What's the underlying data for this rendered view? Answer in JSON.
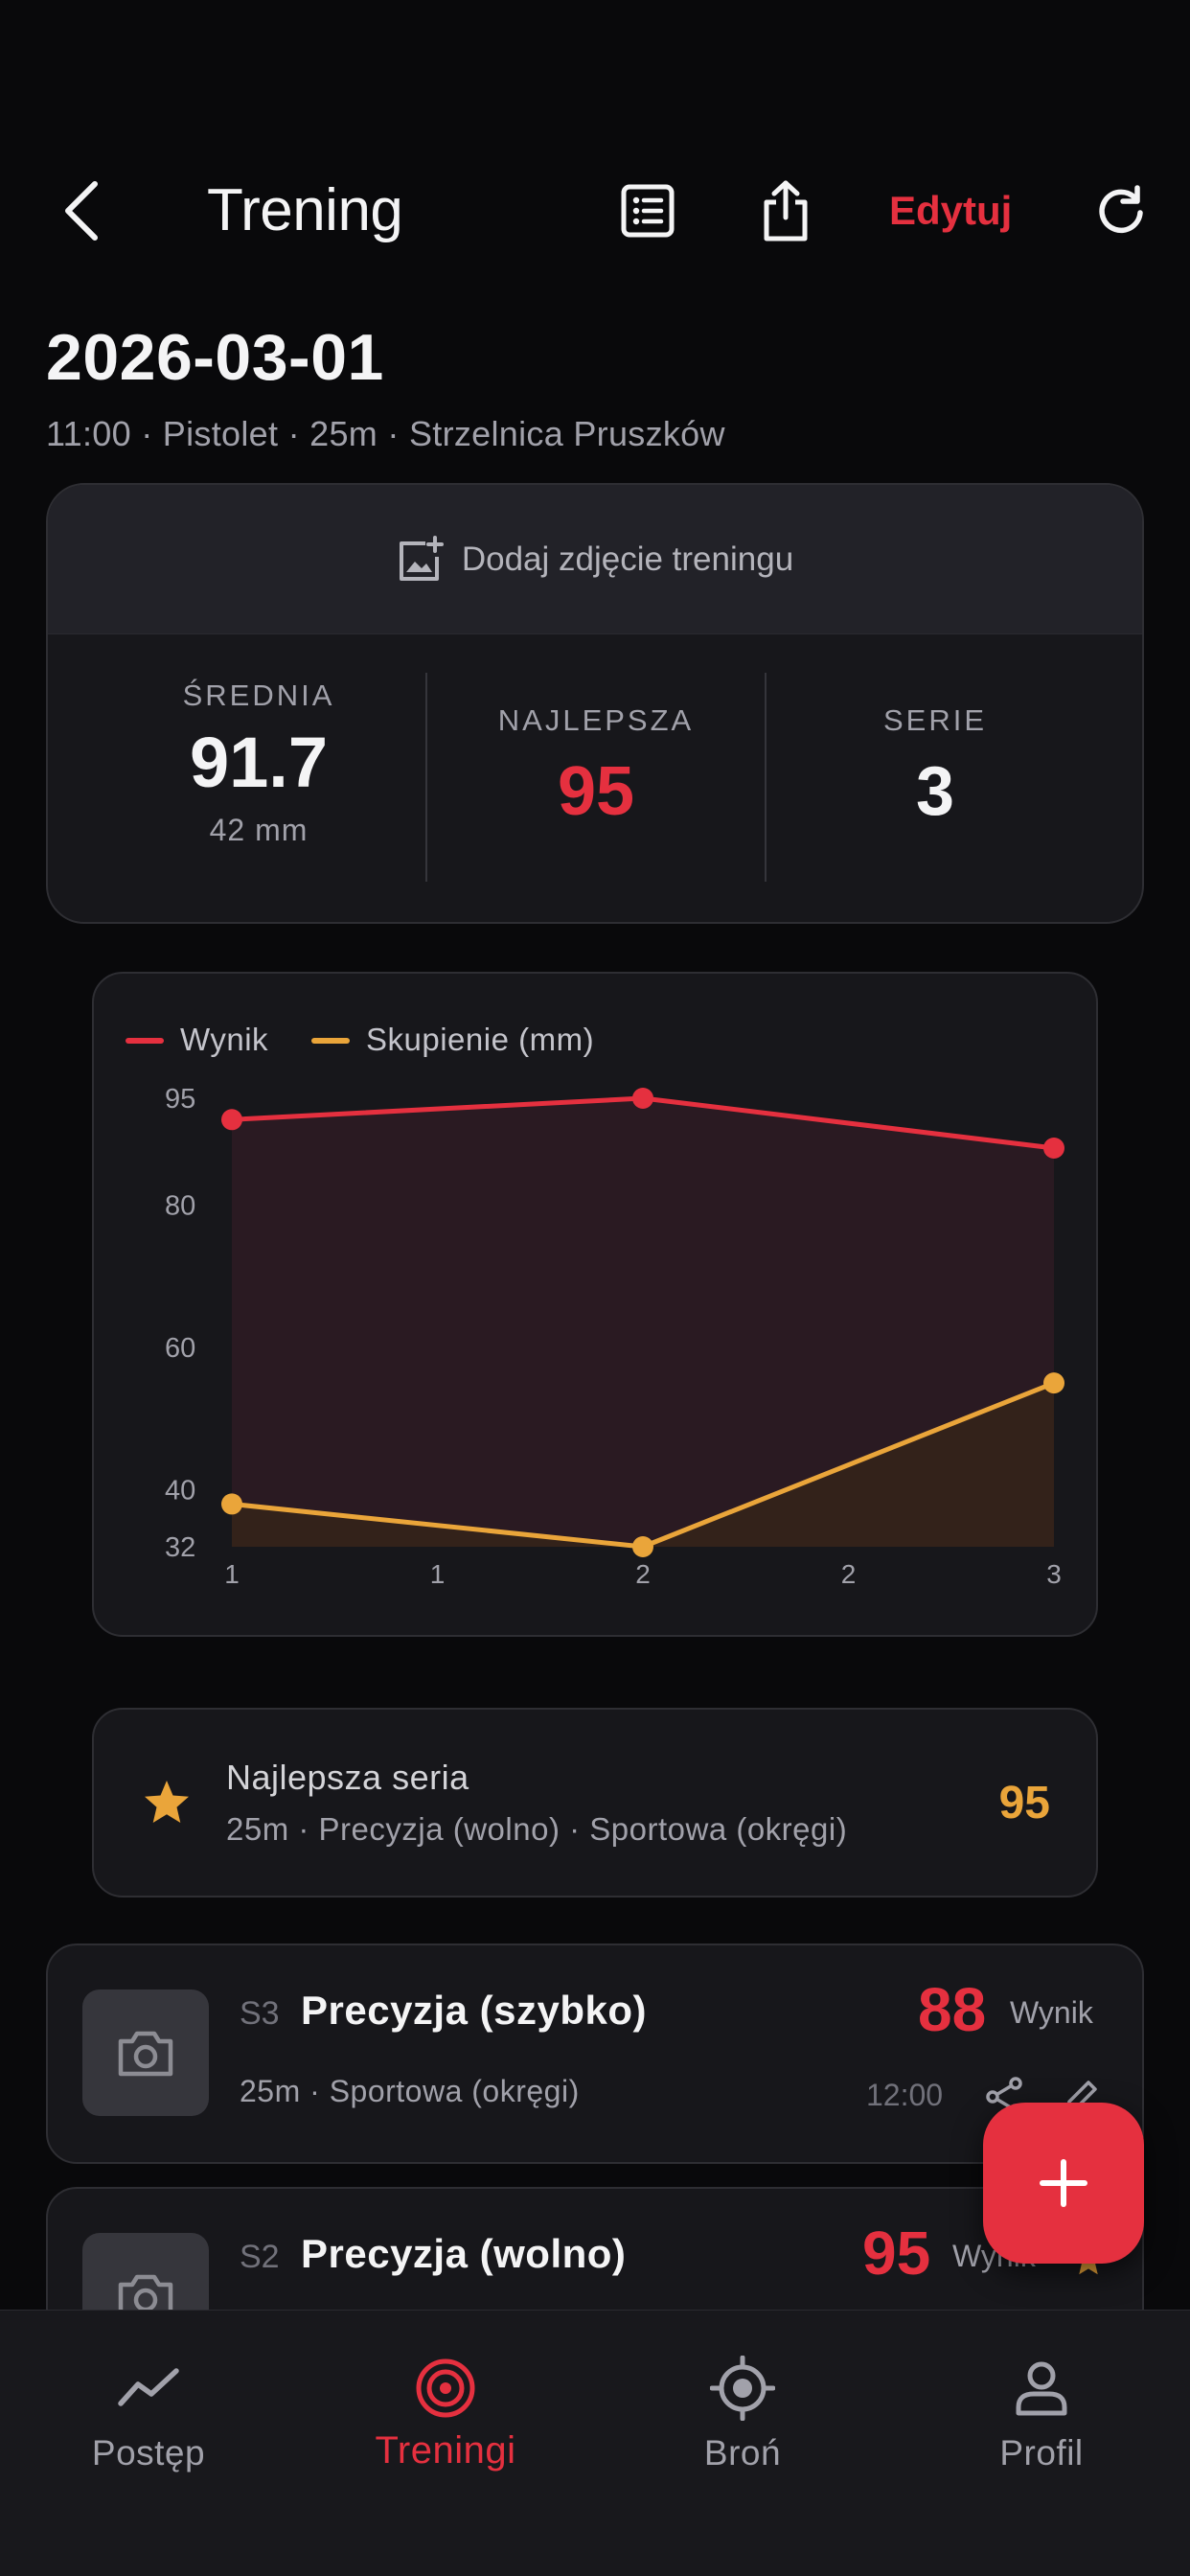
{
  "header": {
    "title": "Trening",
    "edit_label": "Edytuj"
  },
  "session": {
    "date": "2026-03-01",
    "subtitle": "11:00 · Pistolet · 25m · Strzelnica Pruszków",
    "add_photo_label": "Dodaj zdjęcie treningu"
  },
  "stats": {
    "average": {
      "label": "ŚREDNIA",
      "value": "91.7",
      "sub": "42 mm"
    },
    "best": {
      "label": "NAJLEPSZA",
      "value": "95"
    },
    "series": {
      "label": "SERIE",
      "value": "3"
    }
  },
  "colors": {
    "accent": "#e5303f",
    "score": "#e5303f",
    "grouping": "#eaa53a"
  },
  "chart_data": {
    "type": "line",
    "title": "",
    "x": [
      1,
      2,
      3
    ],
    "x_tick_labels": [
      "1",
      "1",
      "2",
      "2",
      "3"
    ],
    "y_tick_labels": [
      "95",
      "80",
      "60",
      "40",
      "32"
    ],
    "ylim": [
      32,
      95
    ],
    "legend_position": "top-left",
    "series": [
      {
        "name": "Wynik",
        "values": [
          92,
          95,
          88
        ],
        "color": "#e5303f"
      },
      {
        "name": "Skupienie (mm)",
        "values": [
          38,
          32,
          55
        ],
        "color": "#eaa53a"
      }
    ]
  },
  "best_series": {
    "title": "Najlepsza seria",
    "subtitle": "25m · Precyzja (wolno) · Sportowa (okręgi)",
    "score": "95"
  },
  "series_list": [
    {
      "num": "S3",
      "name": "Precyzja (szybko)",
      "meta": "25m · Sportowa (okręgi)",
      "score": "88",
      "score_label": "Wynik",
      "time": "12:00"
    },
    {
      "num": "S2",
      "name": "Precyzja (wolno)",
      "score": "95",
      "score_label": "Wynik"
    }
  ],
  "tabs": [
    {
      "label": "Postęp",
      "icon": "trend-icon"
    },
    {
      "label": "Treningi",
      "icon": "target-icon",
      "active": true
    },
    {
      "label": "Broń",
      "icon": "crosshair-icon"
    },
    {
      "label": "Profil",
      "icon": "person-icon"
    }
  ]
}
